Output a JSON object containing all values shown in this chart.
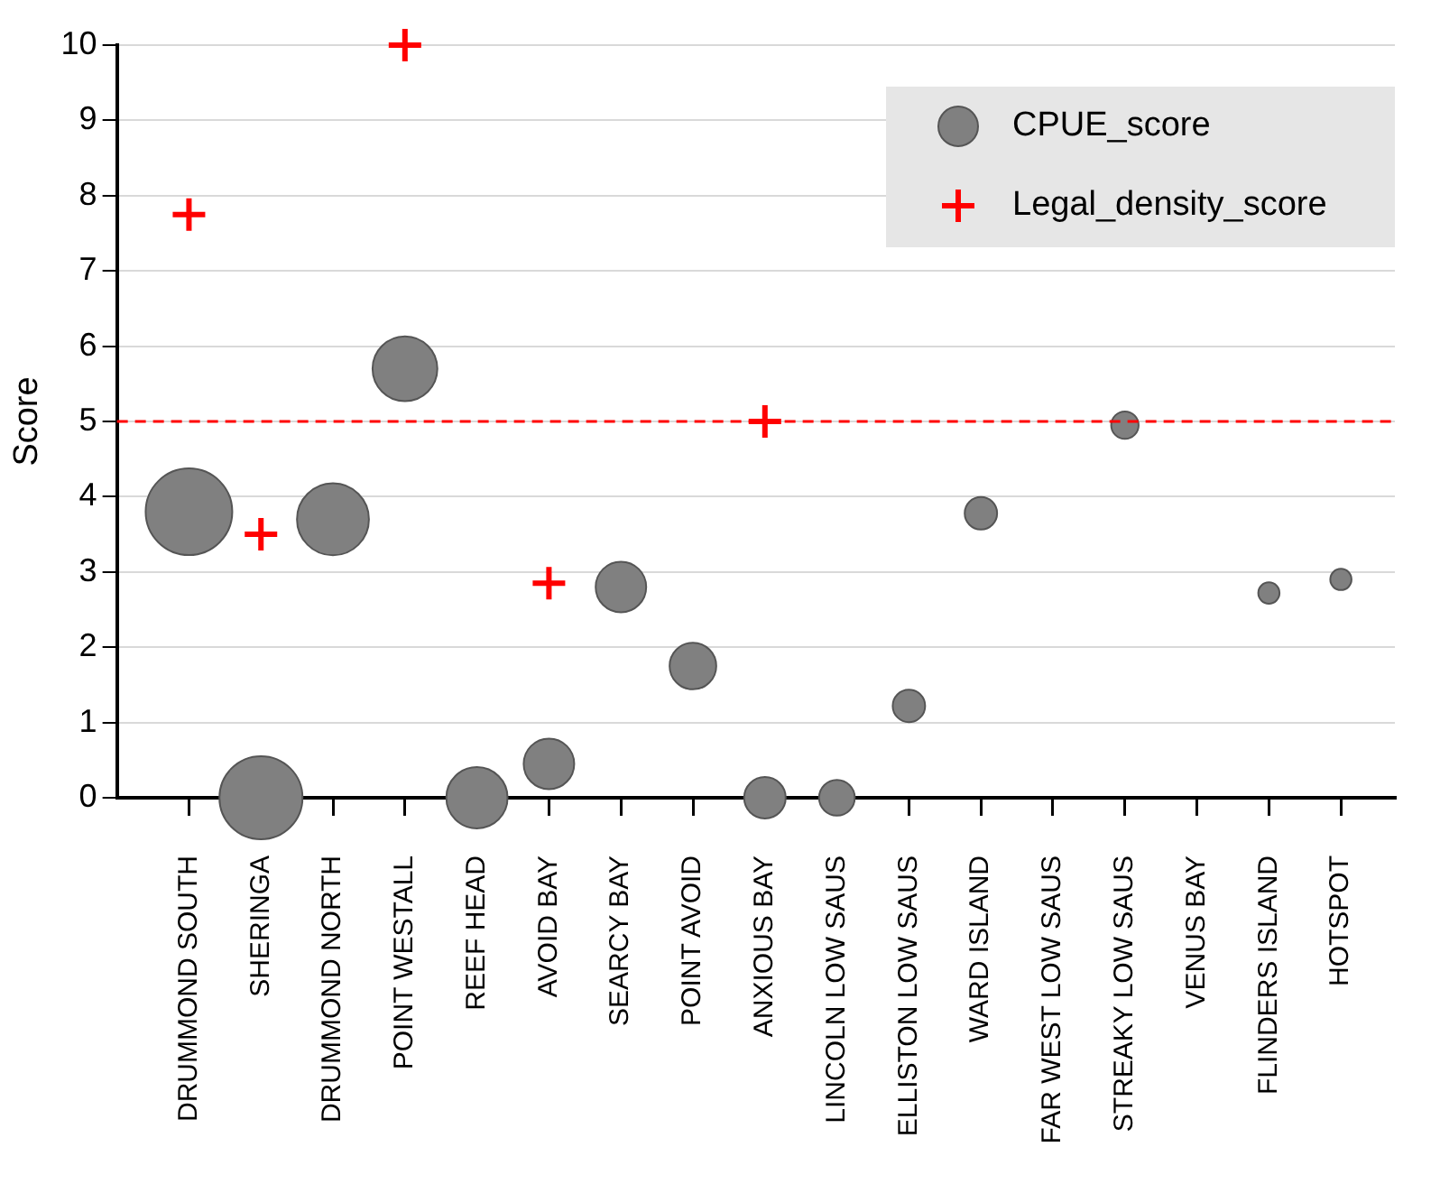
{
  "chart_data": {
    "type": "bubble",
    "ylabel": "Score",
    "categories": [
      "DRUMMOND SOUTH",
      "SHERINGA",
      "DRUMMOND NORTH",
      "POINT WESTALL",
      "REEF HEAD",
      "AVOID BAY",
      "SEARCY BAY",
      "POINT AVOID",
      "ANXIOUS BAY",
      "LINCOLN LOW SAUS",
      "ELLISTON LOW SAUS",
      "WARD ISLAND",
      "FAR WEST LOW SAUS",
      "STREAKY LOW SAUS",
      "VENUS BAY",
      "FLINDERS ISLAND",
      "HOTSPOT"
    ],
    "series": [
      {
        "name": "CPUE_score",
        "color": "#808080",
        "values": [
          3.8,
          0,
          3.7,
          5.7,
          0,
          0.45,
          2.8,
          1.75,
          0,
          0,
          1.22,
          3.78,
          null,
          4.95,
          null,
          2.72,
          2.9
        ],
        "sizes": [
          1,
          0.92,
          0.69,
          0.56,
          0.5,
          0.34,
          0.34,
          0.29,
          0.23,
          0.17,
          0.14,
          0.14,
          null,
          0.1,
          null,
          0.06,
          0.06
        ]
      },
      {
        "name": "Legal_density_score",
        "type": "scatter",
        "marker": "cross",
        "color": "#ff0000",
        "values": [
          7.75,
          3.5,
          null,
          10,
          null,
          2.85,
          null,
          null,
          5,
          null,
          null,
          null,
          null,
          null,
          null,
          null,
          null
        ]
      }
    ],
    "ylim": [
      0,
      10
    ],
    "yticks": [
      0,
      1,
      2,
      3,
      4,
      5,
      6,
      7,
      8,
      9,
      10
    ],
    "grid": "y",
    "legend": "top right",
    "ref_lines": [
      {
        "axis": "y",
        "value": 5,
        "color": "#ff0000",
        "line_style": "dashed"
      }
    ]
  }
}
